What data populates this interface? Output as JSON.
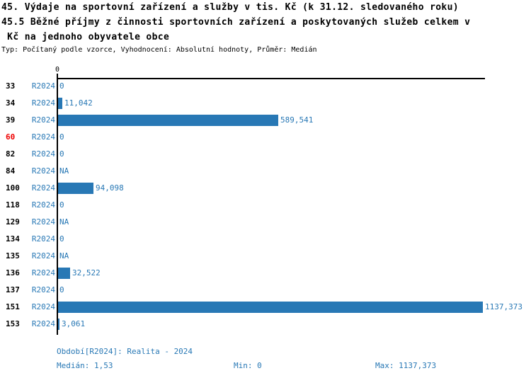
{
  "header": {
    "title_line1": "45. Výdaje na sportovní zařízení a služby v tis. Kč (k 31.12. sledovaného roku)",
    "title_line2": "45.5 Běžné příjmy z činnosti sportovních zařízení a poskytovaných služeb celkem v",
    "title_line3": " Kč na jednoho obyvatele obce",
    "meta": "Typ: Počítaný podle vzorce, Vyhodnocení: Absolutní hodnoty, Průměr: Medián"
  },
  "colors": {
    "bar_blue": "#2878B5",
    "text_blue": "#2878B5",
    "highlight_red": "#EE0000",
    "axis_black": "#000000"
  },
  "chart_data": {
    "type": "bar",
    "orientation": "horizontal",
    "title": "45. Výdaje na sportovní zařízení a služby v tis. Kč (k 31.12. sledovaného roku)",
    "subtitle": "45.5 Běžné příjmy z činnosti sportovních zařízení a poskytovaných služeb celkem v Kč na jednoho obyvatele obce",
    "categories": [
      "33",
      "34",
      "39",
      "60",
      "82",
      "84",
      "100",
      "118",
      "129",
      "134",
      "135",
      "136",
      "137",
      "151",
      "153"
    ],
    "series": [
      {
        "name": "R2024",
        "values": [
          0,
          11.042,
          589.541,
          0,
          0,
          null,
          94.098,
          0,
          null,
          0,
          null,
          32.522,
          0,
          1137.373,
          3.061
        ]
      }
    ],
    "value_labels": [
      "0",
      "11,042",
      "589,541",
      "0",
      "0",
      "NA",
      "94,098",
      "0",
      "NA",
      "0",
      "NA",
      "32,522",
      "0",
      "1137,373",
      "3,061"
    ],
    "x_tick_labels": [
      "0"
    ],
    "xlim": [
      0,
      1137.373
    ],
    "highlighted_category": "60",
    "grid": false,
    "legend": false,
    "stats": {
      "median": 1.53,
      "min": 0,
      "max": 1137.373
    }
  },
  "footer": {
    "period": "Období[R2024]: Realita - 2024",
    "median": "Medián: 1,53",
    "min": "Min: 0",
    "max": "Max: 1137,373"
  }
}
